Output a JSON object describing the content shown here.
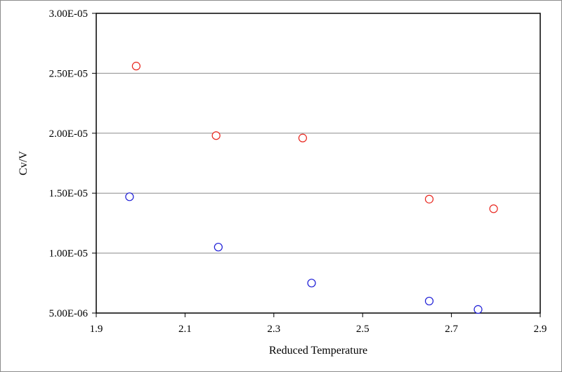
{
  "chart_data": {
    "type": "scatter",
    "title": "",
    "xlabel": "Reduced Temperature",
    "ylabel": "Cv/V",
    "xlim": [
      1.9,
      2.9
    ],
    "ylim": [
      5e-06,
      3e-05
    ],
    "x_ticks": [
      1.9,
      2.1,
      2.3,
      2.5,
      2.7,
      2.9
    ],
    "x_tick_labels": [
      "1.9",
      "2.1",
      "2.3",
      "2.5",
      "2.7",
      "2.9"
    ],
    "y_ticks": [
      5e-06,
      1e-05,
      1.5e-05,
      2e-05,
      2.5e-05,
      3e-05
    ],
    "y_tick_labels": [
      "5.00E-06",
      "1.00E-05",
      "1.50E-05",
      "2.00E-05",
      "2.50E-05",
      "3.00E-05"
    ],
    "grid": "horizontal",
    "legend": "none",
    "series": [
      {
        "color": "#e8261e",
        "marker": "open-circle",
        "x": [
          1.99,
          2.17,
          2.365,
          2.65,
          2.795
        ],
        "y": [
          2.56e-05,
          1.98e-05,
          1.96e-05,
          1.45e-05,
          1.37e-05
        ]
      },
      {
        "color": "#1a1ad6",
        "marker": "open-circle",
        "x": [
          1.975,
          2.175,
          2.385,
          2.65,
          2.76
        ],
        "y": [
          1.47e-05,
          1.05e-05,
          7.5e-06,
          6e-06,
          5.3e-06
        ]
      }
    ]
  }
}
